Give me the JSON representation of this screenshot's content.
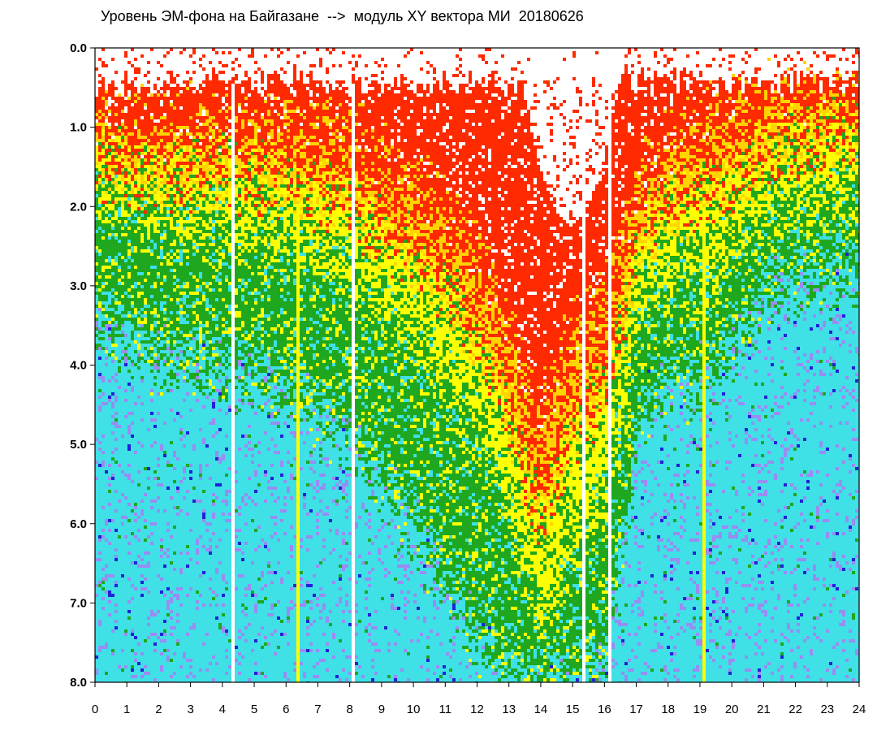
{
  "chart_data": {
    "type": "heatmap",
    "title": "Уровень ЭМ-фона на Байгазане  -->  модуль XY вектора МИ  20180626",
    "xlabel": "",
    "ylabel": "",
    "x_ticks": [
      "0",
      "1",
      "2",
      "3",
      "4",
      "5",
      "6",
      "7",
      "8",
      "9",
      "10",
      "11",
      "12",
      "13",
      "14",
      "15",
      "16",
      "17",
      "18",
      "19",
      "20",
      "21",
      "22",
      "23",
      "24"
    ],
    "y_ticks": [
      "0.0",
      "1.0",
      "2.0",
      "3.0",
      "4.0",
      "5.0",
      "6.0",
      "7.0",
      "8.0"
    ],
    "xlim": [
      0,
      24
    ],
    "ylim": [
      0,
      8
    ],
    "y_inverted": true,
    "grid": false,
    "colors": [
      "#ffffff",
      "#ff2a00",
      "#ffd400",
      "#ffff00",
      "#1fa81f",
      "#3fe0e6",
      "#9a8cf2",
      "#2222d8"
    ],
    "profile_hours": [
      0,
      2,
      4,
      6,
      8,
      10,
      11,
      12,
      13,
      13.5,
      14,
      14.5,
      15,
      16,
      17,
      18,
      19,
      20,
      21,
      22,
      23,
      24
    ],
    "red_yellow_boundary": [
      0.9,
      1.0,
      0.9,
      1.0,
      1.1,
      1.7,
      2.0,
      2.6,
      3.5,
      4.3,
      4.6,
      4.0,
      3.5,
      3.2,
      1.6,
      1.2,
      1.0,
      0.8,
      0.6,
      0.5,
      0.5,
      0.5
    ],
    "yellow_green_boundary": [
      1.9,
      2.2,
      2.3,
      2.4,
      2.8,
      3.6,
      4.1,
      4.8,
      5.8,
      6.6,
      7.2,
      6.8,
      6.1,
      5.6,
      3.3,
      2.8,
      2.7,
      2.4,
      2.1,
      1.9,
      1.8,
      1.8
    ],
    "green_cyan_boundary": [
      3.4,
      3.9,
      4.0,
      4.3,
      4.9,
      6.0,
      6.7,
      7.4,
      8.0,
      8.0,
      8.0,
      8.0,
      8.0,
      7.7,
      4.8,
      4.2,
      4.2,
      3.8,
      3.1,
      2.9,
      2.8,
      2.8
    ],
    "sparse_top": [
      [
        13.2,
        0.0,
        16.6,
        2.2
      ]
    ],
    "white_gaps": [
      4.35,
      8.1,
      15.35,
      16.1
    ],
    "yellow_streaks": [
      6.35,
      19.1
    ]
  }
}
